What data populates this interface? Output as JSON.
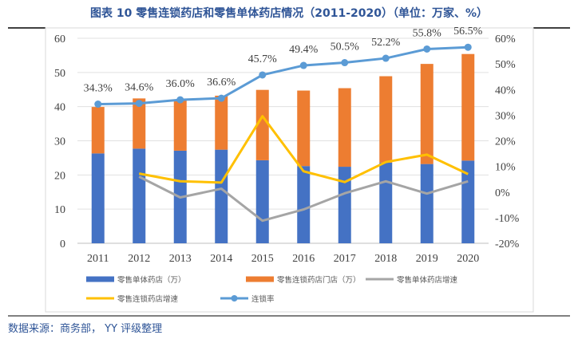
{
  "title": "图表 10 零售连锁药店和零售单体药店情况（2011-2020）（单位：万家、%）",
  "source": "数据来源：商务部， YY 评级整理",
  "chart_data": {
    "type": "bar",
    "stacked": true,
    "categories": [
      "2011",
      "2012",
      "2013",
      "2014",
      "2015",
      "2016",
      "2017",
      "2018",
      "2019",
      "2020"
    ],
    "y_left": {
      "ylim": [
        0,
        60
      ],
      "ticks": [
        "0",
        "10",
        "20",
        "30",
        "40",
        "50",
        "60"
      ]
    },
    "y_right": {
      "ylim": [
        -20,
        60
      ],
      "ticks": [
        "-20%",
        "-10%",
        "0%",
        "10%",
        "20%",
        "30%",
        "40%",
        "50%",
        "60%"
      ]
    },
    "grid": true,
    "legend_placement": "bottom",
    "series": [
      {
        "name": "零售单体药店（万）",
        "kind": "bar",
        "axis": "left",
        "color": "#4472C4",
        "values": [
          26.3,
          27.7,
          27.1,
          27.4,
          24.3,
          22.6,
          22.4,
          23.6,
          23.2,
          24.2
        ]
      },
      {
        "name": "零售连锁药店门店（万）",
        "kind": "bar",
        "axis": "left",
        "color": "#ED7D31",
        "values": [
          13.6,
          14.7,
          14.7,
          15.8,
          20.6,
          22.1,
          23.0,
          25.3,
          29.3,
          31.2
        ]
      },
      {
        "name": "零售单体药店增速",
        "kind": "line",
        "axis": "right",
        "color": "#A5A5A5",
        "values": [
          null,
          6.0,
          -2.1,
          1.3,
          -11.2,
          -6.8,
          -0.5,
          4.2,
          -0.6,
          4.2
        ]
      },
      {
        "name": "零售连锁药店增速",
        "kind": "line",
        "axis": "right",
        "color": "#FFC000",
        "values": [
          null,
          7.2,
          4.2,
          3.7,
          29.6,
          8.1,
          3.9,
          11.7,
          14.6,
          7.0
        ]
      },
      {
        "name": "连锁率",
        "kind": "line-marker",
        "axis": "right",
        "color": "#5B9BD5",
        "values": [
          34.3,
          34.6,
          36.0,
          36.6,
          45.7,
          49.4,
          50.5,
          52.2,
          55.8,
          56.5
        ],
        "labels": [
          "34.3%",
          "34.6%",
          "36.0%",
          "36.6%",
          "45.7%",
          "49.4%",
          "50.5%",
          "52.2%",
          "55.8%",
          "56.5%"
        ]
      }
    ]
  }
}
